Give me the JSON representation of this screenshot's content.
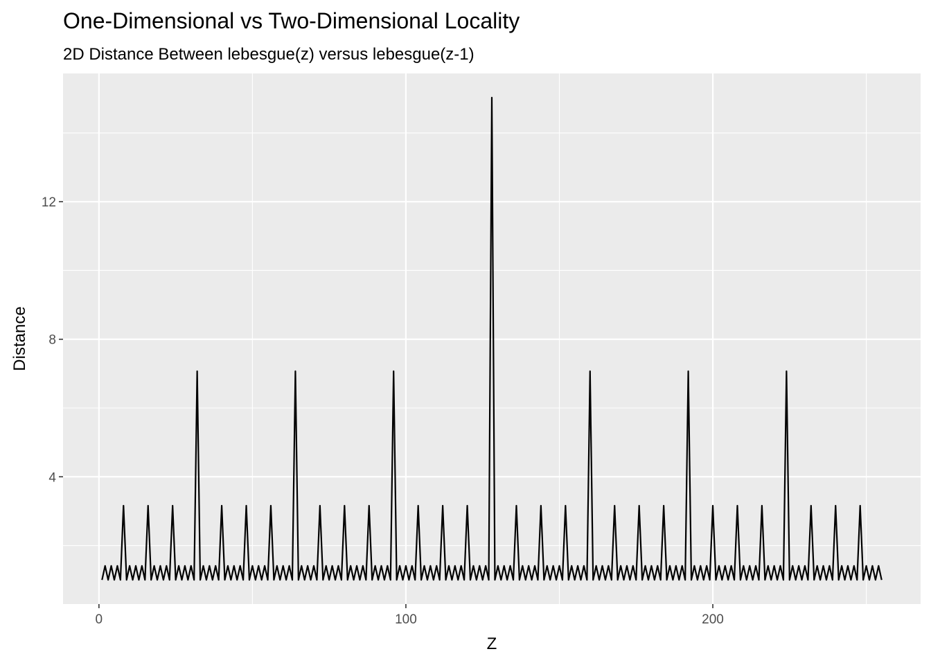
{
  "chart_data": {
    "type": "line",
    "title": "One-Dimensional vs Two-Dimensional Locality",
    "subtitle": "2D Distance Between lebesgue(z) versus lebesgue(z-1)",
    "xlabel": "Z",
    "ylabel": "Distance",
    "xlim": [
      1,
      255
    ],
    "ylim": [
      1,
      15.03
    ],
    "x_ticks": [
      0,
      100,
      200
    ],
    "x_tick_labels": [
      "0",
      "100",
      "200"
    ],
    "y_ticks": [
      4,
      8,
      12
    ],
    "y_tick_labels": [
      "4",
      "8",
      "12"
    ],
    "grid": true,
    "background": "#EBEBEB",
    "line_color": "#000000",
    "x": [
      1,
      2,
      3,
      4,
      5,
      6,
      7,
      8,
      9,
      10,
      11,
      12,
      13,
      14,
      15,
      16,
      17,
      18,
      19,
      20,
      21,
      22,
      23,
      24,
      25,
      26,
      27,
      28,
      29,
      30,
      31,
      32,
      33,
      34,
      35,
      36,
      37,
      38,
      39,
      40,
      41,
      42,
      43,
      44,
      45,
      46,
      47,
      48,
      49,
      50,
      51,
      52,
      53,
      54,
      55,
      56,
      57,
      58,
      59,
      60,
      61,
      62,
      63,
      64,
      65,
      66,
      67,
      68,
      69,
      70,
      71,
      72,
      73,
      74,
      75,
      76,
      77,
      78,
      79,
      80,
      81,
      82,
      83,
      84,
      85,
      86,
      87,
      88,
      89,
      90,
      91,
      92,
      93,
      94,
      95,
      96,
      97,
      98,
      99,
      100,
      101,
      102,
      103,
      104,
      105,
      106,
      107,
      108,
      109,
      110,
      111,
      112,
      113,
      114,
      115,
      116,
      117,
      118,
      119,
      120,
      121,
      122,
      123,
      124,
      125,
      126,
      127,
      128,
      129,
      130,
      131,
      132,
      133,
      134,
      135,
      136,
      137,
      138,
      139,
      140,
      141,
      142,
      143,
      144,
      145,
      146,
      147,
      148,
      149,
      150,
      151,
      152,
      153,
      154,
      155,
      156,
      157,
      158,
      159,
      160,
      161,
      162,
      163,
      164,
      165,
      166,
      167,
      168,
      169,
      170,
      171,
      172,
      173,
      174,
      175,
      176,
      177,
      178,
      179,
      180,
      181,
      182,
      183,
      184,
      185,
      186,
      187,
      188,
      189,
      190,
      191,
      192,
      193,
      194,
      195,
      196,
      197,
      198,
      199,
      200,
      201,
      202,
      203,
      204,
      205,
      206,
      207,
      208,
      209,
      210,
      211,
      212,
      213,
      214,
      215,
      216,
      217,
      218,
      219,
      220,
      221,
      222,
      223,
      224,
      225,
      226,
      227,
      228,
      229,
      230,
      231,
      232,
      233,
      234,
      235,
      236,
      237,
      238,
      239,
      240,
      241,
      242,
      243,
      244,
      245,
      246,
      247,
      248,
      249,
      250,
      251,
      252,
      253,
      254,
      255
    ],
    "y": [
      1,
      1.41,
      1,
      1.41,
      1,
      1.41,
      1,
      3.16,
      1,
      1.41,
      1,
      1.41,
      1,
      1.41,
      1,
      3.16,
      1,
      1.41,
      1,
      1.41,
      1,
      1.41,
      1,
      3.16,
      1,
      1.41,
      1,
      1.41,
      1,
      1.41,
      1,
      7.07,
      1,
      1.41,
      1,
      1.41,
      1,
      1.41,
      1,
      3.16,
      1,
      1.41,
      1,
      1.41,
      1,
      1.41,
      1,
      3.16,
      1,
      1.41,
      1,
      1.41,
      1,
      1.41,
      1,
      3.16,
      1,
      1.41,
      1,
      1.41,
      1,
      1.41,
      1,
      7.07,
      1,
      1.41,
      1,
      1.41,
      1,
      1.41,
      1,
      3.16,
      1,
      1.41,
      1,
      1.41,
      1,
      1.41,
      1,
      3.16,
      1,
      1.41,
      1,
      1.41,
      1,
      1.41,
      1,
      3.16,
      1,
      1.41,
      1,
      1.41,
      1,
      1.41,
      1,
      7.07,
      1,
      1.41,
      1,
      1.41,
      1,
      1.41,
      1,
      3.16,
      1,
      1.41,
      1,
      1.41,
      1,
      1.41,
      1,
      3.16,
      1,
      1.41,
      1,
      1.41,
      1,
      1.41,
      1,
      3.16,
      1,
      1.41,
      1,
      1.41,
      1,
      1.41,
      1,
      15.03,
      1,
      1.41,
      1,
      1.41,
      1,
      1.41,
      1,
      3.16,
      1,
      1.41,
      1,
      1.41,
      1,
      1.41,
      1,
      3.16,
      1,
      1.41,
      1,
      1.41,
      1,
      1.41,
      1,
      3.16,
      1,
      1.41,
      1,
      1.41,
      1,
      1.41,
      1,
      7.07,
      1,
      1.41,
      1,
      1.41,
      1,
      1.41,
      1,
      3.16,
      1,
      1.41,
      1,
      1.41,
      1,
      1.41,
      1,
      3.16,
      1,
      1.41,
      1,
      1.41,
      1,
      1.41,
      1,
      3.16,
      1,
      1.41,
      1,
      1.41,
      1,
      1.41,
      1,
      7.07,
      1,
      1.41,
      1,
      1.41,
      1,
      1.41,
      1,
      3.16,
      1,
      1.41,
      1,
      1.41,
      1,
      1.41,
      1,
      3.16,
      1,
      1.41,
      1,
      1.41,
      1,
      1.41,
      1,
      3.16,
      1,
      1.41,
      1,
      1.41,
      1,
      1.41,
      1,
      7.07,
      1,
      1.41,
      1,
      1.41,
      1,
      1.41,
      1,
      3.16,
      1,
      1.41,
      1,
      1.41,
      1,
      1.41,
      1,
      3.16,
      1,
      1.41,
      1,
      1.41,
      1,
      1.41,
      1,
      3.16,
      1,
      1.41,
      1,
      1.41,
      1,
      1.41,
      1
    ]
  }
}
